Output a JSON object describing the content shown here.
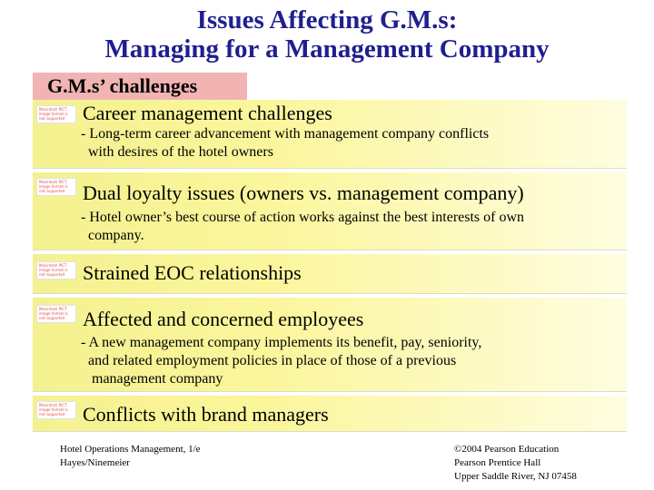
{
  "title": {
    "line1": "Issues Affecting G.M.s:",
    "line2": "Managing for a Management Company"
  },
  "section_tag": "G.M.s’ challenges",
  "icon_text": "Macintosh PICT image format is not supported",
  "items": [
    {
      "heading": "Career management challenges",
      "sub_lines": [
        "- Long-term career advancement with management company conflicts",
        "  with desires of the hotel owners"
      ]
    },
    {
      "heading": "Dual loyalty issues (owners vs. management company)",
      "sub_lines": [
        "- Hotel owner’s best course of action works against the best interests of own",
        "  company."
      ]
    },
    {
      "heading": "Strained EOC relationships",
      "sub_lines": []
    },
    {
      "heading": "Affected and concerned employees",
      "sub_lines": [
        "- A new management company implements its benefit, pay, seniority,",
        "  and related employment policies in place of those of a previous",
        "   management company"
      ]
    },
    {
      "heading": "Conflicts with brand managers",
      "sub_lines": []
    }
  ],
  "footer_left": {
    "line1": "Hotel Operations Management, 1/e",
    "line2": "Hayes/Ninemeier"
  },
  "footer_right": {
    "line1": "©2004 Pearson Education",
    "line2": "Pearson Prentice Hall",
    "line3": "Upper Saddle River, NJ 07458"
  }
}
